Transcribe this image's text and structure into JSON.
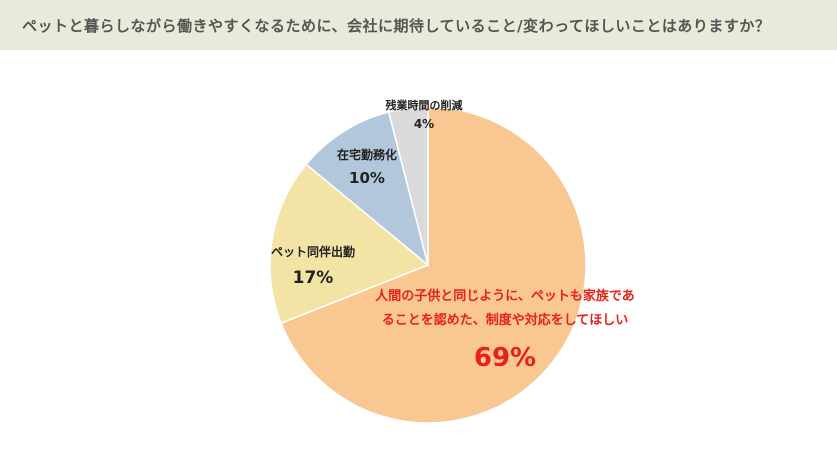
{
  "header": {
    "title": "ペットと暮らしながら働きやすくなるために、会社に期待していること/変わってほしいことはありますか？"
  },
  "chart_data": {
    "type": "pie",
    "title": "",
    "slices": [
      {
        "label": "人間の子供と同じように、ペットも家族であることを認めた、制度や対応をしてほしい",
        "label_lines": [
          "人間の子供と同じように、ペットも家族であ",
          "ることを認めた、制度や対応をしてほしい"
        ],
        "value": 69,
        "display": "69%",
        "color": "#f8c792"
      },
      {
        "label": "ペット同伴出勤",
        "label_lines": [
          "ペット同伴出勤"
        ],
        "value": 17,
        "display": "17%",
        "color": "#f3e4a6"
      },
      {
        "label": "在宅勤務化",
        "label_lines": [
          "在宅勤務化"
        ],
        "value": 10,
        "display": "10%",
        "color": "#b3c7dc"
      },
      {
        "label": "残業時間の削減",
        "label_lines": [
          "残業時間の削減"
        ],
        "value": 4,
        "display": "4%",
        "color": "#dadada"
      }
    ]
  }
}
